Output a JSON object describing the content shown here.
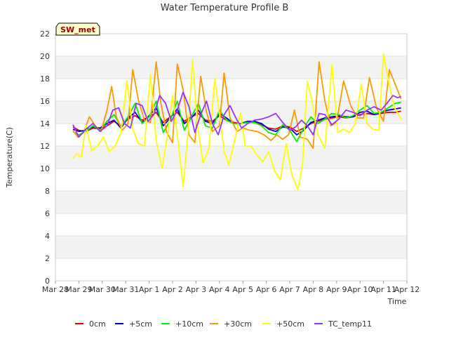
{
  "chart_data": {
    "type": "line",
    "title": "Water Temperature Profile B",
    "xlabel": "Time",
    "ylabel": "Temperature(C)",
    "ylim": [
      0,
      22
    ],
    "yticks": [
      0,
      2,
      4,
      6,
      8,
      10,
      12,
      14,
      16,
      18,
      20,
      22
    ],
    "xticks": [
      "Mar 28",
      "Mar 29",
      "Mar 30",
      "Mar 31",
      "Apr 1",
      "Apr 2",
      "Apr 3",
      "Apr 4",
      "Apr 5",
      "Apr 6",
      "Apr 7",
      "Apr 8",
      "Apr 9",
      "Apr 10",
      "Apr 11",
      "Apr 12"
    ],
    "grid": true,
    "alternating_bands": true,
    "legend_position": "bottom",
    "annotation": "SW_met",
    "x_units": "day index from Mar 28",
    "series": [
      {
        "name": "0cm",
        "color": "#dd0000",
        "x": [
          0.75,
          1.0,
          1.3,
          1.6,
          1.9,
          2.2,
          2.5,
          2.8,
          3.1,
          3.4,
          3.7,
          4.0,
          4.3,
          4.6,
          4.9,
          5.2,
          5.5,
          5.8,
          6.1,
          6.4,
          6.7,
          7.0,
          7.3,
          7.6,
          7.9,
          8.2,
          8.5,
          8.8,
          9.1,
          9.4,
          9.7,
          10.0,
          10.3,
          10.6,
          10.9,
          11.2,
          11.5,
          11.8,
          12.1,
          12.4,
          12.7,
          13.0,
          13.3,
          13.6,
          13.9,
          14.2,
          14.5,
          14.75
        ],
        "y": [
          13.7,
          13.4,
          13.3,
          13.6,
          13.5,
          13.8,
          14.2,
          13.8,
          14.4,
          14.7,
          14.3,
          14.6,
          15.0,
          14.1,
          14.6,
          15.0,
          14.2,
          14.6,
          14.9,
          14.3,
          14.2,
          14.7,
          14.3,
          14.1,
          14.0,
          14.1,
          14.1,
          13.9,
          13.6,
          13.5,
          13.8,
          13.7,
          13.3,
          13.6,
          14.0,
          14.2,
          14.4,
          14.5,
          14.6,
          14.5,
          14.6,
          14.8,
          14.9,
          14.8,
          14.9,
          15.0,
          15.0,
          15.1
        ]
      },
      {
        "name": "+5cm",
        "color": "#0000cc",
        "x": [
          0.75,
          1.0,
          1.3,
          1.6,
          1.9,
          2.2,
          2.5,
          2.8,
          3.1,
          3.4,
          3.7,
          4.0,
          4.3,
          4.6,
          4.9,
          5.2,
          5.5,
          5.8,
          6.1,
          6.4,
          6.7,
          7.0,
          7.3,
          7.6,
          7.9,
          8.2,
          8.5,
          8.8,
          9.1,
          9.4,
          9.7,
          10.0,
          10.3,
          10.6,
          10.9,
          11.2,
          11.5,
          11.8,
          12.1,
          12.4,
          12.7,
          13.0,
          13.3,
          13.6,
          13.9,
          14.2,
          14.5,
          14.75
        ],
        "y": [
          13.5,
          13.3,
          13.4,
          13.7,
          13.6,
          14.0,
          14.3,
          13.6,
          14.5,
          15.0,
          14.1,
          14.7,
          15.4,
          13.8,
          14.5,
          15.3,
          14.0,
          14.5,
          15.2,
          14.2,
          14.0,
          14.9,
          14.5,
          14.0,
          14.0,
          14.2,
          14.2,
          14.0,
          13.5,
          13.3,
          13.7,
          13.6,
          13.0,
          13.4,
          14.1,
          14.3,
          14.5,
          14.6,
          14.7,
          14.6,
          14.6,
          15.0,
          15.1,
          14.8,
          15.0,
          15.2,
          15.3,
          15.4
        ]
      },
      {
        "name": "+10cm",
        "color": "#00ee00",
        "x": [
          0.75,
          1.0,
          1.3,
          1.6,
          1.9,
          2.2,
          2.5,
          2.8,
          3.1,
          3.4,
          3.7,
          4.0,
          4.3,
          4.6,
          4.9,
          5.2,
          5.5,
          5.8,
          6.1,
          6.4,
          6.7,
          7.0,
          7.3,
          7.6,
          7.9,
          8.2,
          8.5,
          8.8,
          9.1,
          9.4,
          9.7,
          10.0,
          10.3,
          10.6,
          10.9,
          11.2,
          11.5,
          11.8,
          12.1,
          12.4,
          12.7,
          13.0,
          13.3,
          13.6,
          13.9,
          14.2,
          14.5,
          14.75
        ],
        "y": [
          13.3,
          13.0,
          13.3,
          13.8,
          13.4,
          14.2,
          14.8,
          13.7,
          14.6,
          15.8,
          14.0,
          14.6,
          16.0,
          13.2,
          14.3,
          16.0,
          13.4,
          14.6,
          15.8,
          13.8,
          13.6,
          15.2,
          14.3,
          14.0,
          14.0,
          14.1,
          14.1,
          13.8,
          13.2,
          13.0,
          13.9,
          13.4,
          12.4,
          13.6,
          14.6,
          14.0,
          14.4,
          14.9,
          14.8,
          14.5,
          14.7,
          15.2,
          15.6,
          14.9,
          15.0,
          15.4,
          15.8,
          15.9
        ]
      },
      {
        "name": "+30cm",
        "color": "#ff9900",
        "x": [
          0.75,
          0.95,
          1.2,
          1.45,
          1.7,
          1.95,
          2.2,
          2.4,
          2.6,
          2.85,
          3.1,
          3.3,
          3.55,
          3.8,
          4.05,
          4.3,
          4.5,
          4.75,
          5.0,
          5.2,
          5.45,
          5.7,
          5.95,
          6.2,
          6.45,
          6.7,
          7.0,
          7.2,
          7.45,
          7.75,
          8.0,
          8.3,
          8.6,
          8.9,
          9.2,
          9.45,
          9.7,
          9.95,
          10.2,
          10.45,
          10.75,
          11.0,
          11.25,
          11.5,
          11.75,
          12.0,
          12.3,
          12.6,
          12.9,
          13.15,
          13.4,
          13.7,
          14.0,
          14.25,
          14.5,
          14.75
        ],
        "y": [
          13.4,
          12.8,
          13.2,
          14.6,
          13.8,
          13.3,
          15.2,
          17.3,
          14.6,
          13.4,
          14.0,
          18.8,
          16.0,
          14.3,
          14.1,
          19.5,
          15.8,
          13.2,
          12.3,
          19.3,
          17.0,
          13.0,
          12.3,
          18.2,
          15.0,
          13.3,
          13.8,
          18.5,
          14.5,
          13.3,
          13.6,
          13.4,
          13.3,
          13.0,
          12.5,
          13.0,
          12.6,
          13.0,
          15.2,
          12.8,
          12.6,
          11.8,
          19.5,
          16.0,
          13.8,
          14.1,
          17.8,
          15.6,
          14.5,
          14.5,
          18.1,
          15.4,
          14.2,
          18.8,
          17.5,
          16.2
        ]
      },
      {
        "name": "+50cm",
        "color": "#ffff00",
        "x": [
          0.75,
          0.9,
          1.1,
          1.3,
          1.55,
          1.8,
          2.05,
          2.3,
          2.55,
          2.8,
          3.05,
          3.3,
          3.55,
          3.8,
          4.05,
          4.3,
          4.55,
          4.8,
          5.0,
          5.2,
          5.45,
          5.65,
          5.85,
          6.05,
          6.3,
          6.55,
          6.8,
          7.0,
          7.2,
          7.4,
          7.65,
          7.9,
          8.1,
          8.35,
          8.6,
          8.85,
          9.1,
          9.35,
          9.6,
          9.85,
          10.1,
          10.35,
          10.55,
          10.75,
          10.95,
          11.2,
          11.5,
          11.8,
          12.05,
          12.3,
          12.55,
          12.8,
          13.05,
          13.3,
          13.55,
          13.8,
          14.0,
          14.2,
          14.45,
          14.75
        ],
        "y": [
          10.9,
          11.3,
          11.0,
          13.8,
          11.6,
          12.0,
          12.8,
          11.5,
          12.0,
          13.2,
          17.8,
          13.5,
          12.2,
          12.0,
          18.4,
          12.5,
          10.0,
          13.2,
          16.5,
          13.0,
          8.4,
          13.0,
          19.7,
          14.0,
          10.5,
          11.8,
          18.0,
          14.8,
          11.5,
          10.3,
          12.5,
          15.0,
          12.0,
          12.0,
          11.2,
          10.6,
          11.5,
          9.8,
          9.0,
          12.2,
          9.4,
          8.1,
          10.5,
          17.8,
          16.0,
          13.0,
          11.8,
          19.2,
          13.2,
          13.5,
          13.2,
          14.0,
          17.5,
          14.0,
          13.5,
          13.4,
          20.2,
          18.0,
          15.5,
          14.4
        ]
      },
      {
        "name": "TC_temp11",
        "color": "#9933ff",
        "x": [
          0.75,
          1.0,
          1.3,
          1.6,
          1.9,
          2.2,
          2.45,
          2.7,
          2.95,
          3.2,
          3.45,
          3.7,
          3.95,
          4.2,
          4.45,
          4.7,
          4.95,
          5.2,
          5.45,
          5.7,
          5.95,
          6.2,
          6.45,
          6.7,
          6.95,
          7.2,
          7.45,
          7.7,
          7.95,
          8.2,
          8.5,
          8.8,
          9.1,
          9.4,
          9.7,
          10.0,
          10.25,
          10.5,
          10.75,
          11.0,
          11.25,
          11.5,
          11.8,
          12.1,
          12.4,
          12.7,
          13.0,
          13.3,
          13.6,
          13.9,
          14.15,
          14.4,
          14.6,
          14.75
        ],
        "y": [
          13.9,
          12.8,
          13.5,
          14.0,
          13.3,
          13.8,
          15.2,
          15.4,
          14.0,
          13.6,
          15.8,
          15.6,
          14.2,
          14.8,
          16.5,
          15.8,
          14.2,
          15.2,
          16.8,
          15.5,
          13.2,
          14.8,
          16.0,
          14.0,
          13.0,
          14.8,
          15.6,
          14.5,
          13.6,
          14.0,
          14.3,
          14.4,
          14.6,
          14.9,
          14.1,
          13.4,
          13.7,
          14.3,
          13.8,
          13.0,
          14.9,
          14.8,
          13.9,
          14.4,
          15.2,
          15.0,
          14.7,
          15.2,
          15.5,
          15.2,
          15.8,
          16.5,
          16.3,
          16.4
        ]
      }
    ]
  }
}
